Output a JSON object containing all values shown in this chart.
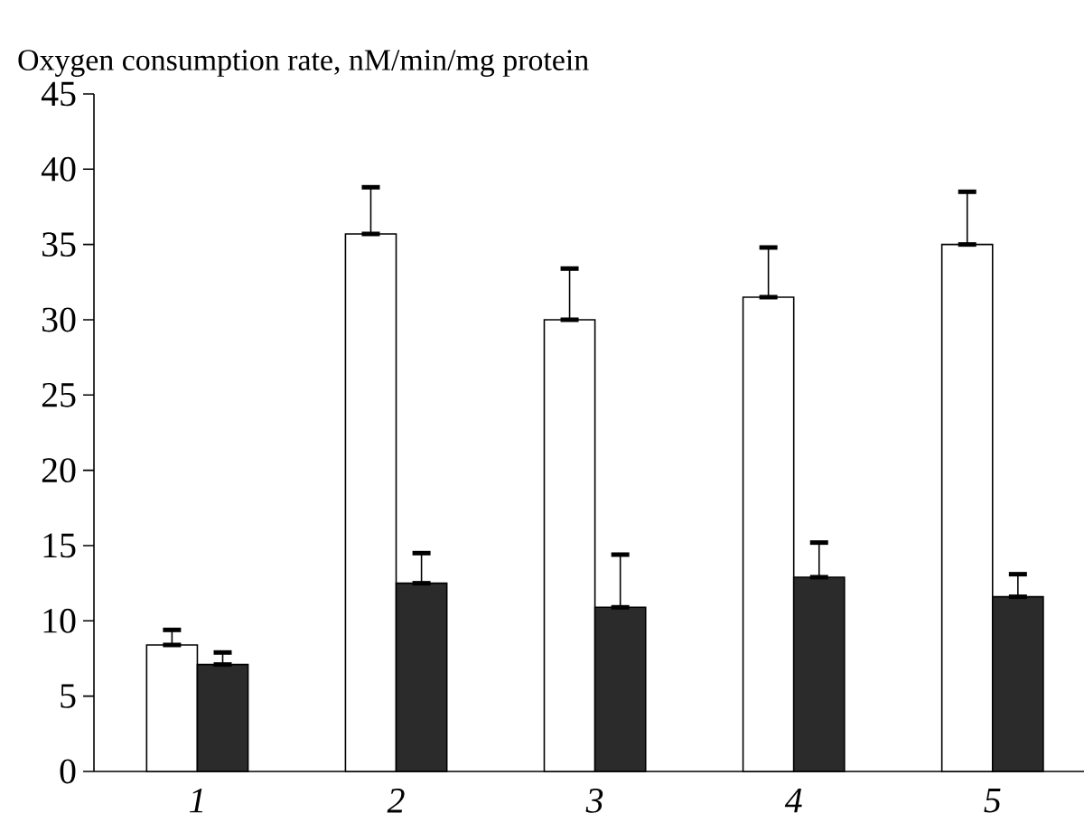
{
  "chart_data": {
    "type": "bar",
    "ylabel": "Oxygen consumption rate, nM/min/mg protein",
    "categories": [
      "1",
      "2",
      "3",
      "4",
      "5"
    ],
    "series": [
      {
        "color": "#ffffff",
        "values": [
          8.4,
          35.7,
          30.0,
          31.5,
          35.0
        ],
        "errors": [
          [
            8.4,
            9.4
          ],
          [
            35.7,
            38.8
          ],
          [
            30.0,
            33.4
          ],
          [
            31.5,
            34.8
          ],
          [
            35.0,
            38.5
          ]
        ]
      },
      {
        "color": "#2b2b2b",
        "values": [
          7.1,
          12.5,
          10.9,
          12.9,
          11.6
        ],
        "errors": [
          [
            7.1,
            7.9
          ],
          [
            12.5,
            14.5
          ],
          [
            10.9,
            14.4
          ],
          [
            12.9,
            15.2
          ],
          [
            11.6,
            13.1
          ]
        ]
      }
    ],
    "ylim": [
      0,
      45
    ],
    "yticks": [
      0,
      5,
      10,
      15,
      20,
      25,
      30,
      35,
      40,
      45
    ]
  }
}
